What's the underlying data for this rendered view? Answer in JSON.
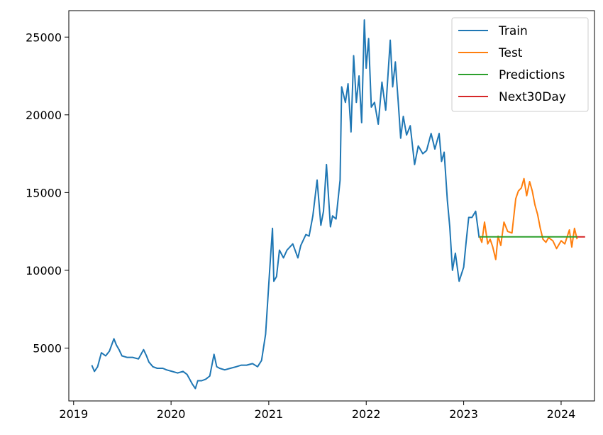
{
  "chart_data": {
    "type": "line",
    "title": "",
    "xlabel": "",
    "ylabel": "",
    "xlim": [
      "2018-12-14",
      "2024-05-05"
    ],
    "ylim": [
      1600,
      26700
    ],
    "x_ticks": [
      "2019",
      "2020",
      "2021",
      "2022",
      "2023",
      "2024"
    ],
    "y_ticks": [
      "5000",
      "10000",
      "15000",
      "20000",
      "25000"
    ],
    "legend_position": "top-right",
    "grid": false,
    "series": [
      {
        "name": "Train",
        "color": "#1f77b4",
        "x": [
          "2019-03-10",
          "2019-03-20",
          "2019-04-01",
          "2019-04-15",
          "2019-05-01",
          "2019-05-15",
          "2019-06-01",
          "2019-06-10",
          "2019-06-20",
          "2019-07-01",
          "2019-07-20",
          "2019-08-10",
          "2019-09-01",
          "2019-09-20",
          "2019-10-01",
          "2019-10-10",
          "2019-10-25",
          "2019-11-10",
          "2019-12-01",
          "2019-12-15",
          "2020-01-05",
          "2020-01-25",
          "2020-02-15",
          "2020-03-01",
          "2020-03-20",
          "2020-04-01",
          "2020-04-10",
          "2020-04-25",
          "2020-05-10",
          "2020-05-25",
          "2020-06-10",
          "2020-06-20",
          "2020-07-01",
          "2020-07-20",
          "2020-08-10",
          "2020-09-01",
          "2020-09-20",
          "2020-10-10",
          "2020-11-01",
          "2020-11-20",
          "2020-12-05",
          "2020-12-20",
          "2021-01-05",
          "2021-01-15",
          "2021-01-20",
          "2021-01-30",
          "2021-02-10",
          "2021-02-25",
          "2021-03-10",
          "2021-04-01",
          "2021-04-20",
          "2021-05-01",
          "2021-05-20",
          "2021-06-01",
          "2021-06-15",
          "2021-07-01",
          "2021-07-15",
          "2021-07-25",
          "2021-08-05",
          "2021-08-20",
          "2021-08-28",
          "2021-09-10",
          "2021-09-25",
          "2021-10-01",
          "2021-10-15",
          "2021-10-25",
          "2021-11-05",
          "2021-11-15",
          "2021-11-25",
          "2021-12-05",
          "2021-12-15",
          "2021-12-25",
          "2022-01-01",
          "2022-01-10",
          "2022-01-20",
          "2022-02-01",
          "2022-02-15",
          "2022-03-01",
          "2022-03-15",
          "2022-04-01",
          "2022-04-10",
          "2022-04-20",
          "2022-05-01",
          "2022-05-10",
          "2022-05-20",
          "2022-06-01",
          "2022-06-15",
          "2022-07-01",
          "2022-07-15",
          "2022-08-01",
          "2022-08-15",
          "2022-09-01",
          "2022-09-15",
          "2022-10-01",
          "2022-10-10",
          "2022-10-20",
          "2022-11-01",
          "2022-11-10",
          "2022-11-20",
          "2022-12-01",
          "2022-12-15",
          "2023-01-01",
          "2023-01-10",
          "2023-01-20",
          "2023-02-01",
          "2023-02-15",
          "2023-02-28"
        ],
        "values": [
          3900,
          3500,
          3800,
          4700,
          4500,
          4800,
          5600,
          5200,
          4900,
          4500,
          4400,
          4400,
          4300,
          4900,
          4500,
          4100,
          3800,
          3700,
          3700,
          3600,
          3500,
          3400,
          3500,
          3300,
          2700,
          2400,
          2900,
          2900,
          3000,
          3200,
          4600,
          3800,
          3700,
          3600,
          3700,
          3800,
          3900,
          3900,
          4000,
          3800,
          4200,
          5900,
          10200,
          12700,
          9300,
          9600,
          11300,
          10800,
          11300,
          11700,
          10800,
          11600,
          12300,
          12200,
          13500,
          15800,
          12900,
          13800,
          16800,
          12800,
          13500,
          13300,
          15800,
          21800,
          20800,
          22000,
          18900,
          23800,
          20800,
          22500,
          19500,
          26100,
          23000,
          24900,
          20500,
          20800,
          19400,
          22100,
          20300,
          24800,
          21800,
          23400,
          20800,
          18500,
          19900,
          18700,
          19300,
          16800,
          18000,
          17500,
          17700,
          18800,
          17800,
          18800,
          17000,
          17600,
          14500,
          12800,
          10000,
          11100,
          9300,
          10200,
          11800,
          13400,
          13400,
          13800,
          12100
        ]
      },
      {
        "name": "Test",
        "color": "#ff7f0e",
        "x": [
          "2023-03-01",
          "2023-03-10",
          "2023-03-20",
          "2023-04-01",
          "2023-04-10",
          "2023-04-20",
          "2023-05-01",
          "2023-05-10",
          "2023-05-20",
          "2023-06-01",
          "2023-06-15",
          "2023-07-01",
          "2023-07-15",
          "2023-07-25",
          "2023-08-05",
          "2023-08-15",
          "2023-08-25",
          "2023-09-05",
          "2023-09-15",
          "2023-09-25",
          "2023-10-05",
          "2023-10-15",
          "2023-10-25",
          "2023-11-05",
          "2023-11-15",
          "2023-12-01",
          "2023-12-15",
          "2024-01-01",
          "2024-01-15",
          "2024-02-01",
          "2024-02-10",
          "2024-02-20",
          "2024-03-01"
        ],
        "values": [
          12200,
          11800,
          13100,
          11700,
          12000,
          11500,
          10700,
          12200,
          11600,
          13100,
          12500,
          12400,
          14600,
          15100,
          15300,
          15900,
          14800,
          15700,
          15100,
          14200,
          13600,
          12700,
          12000,
          11800,
          12100,
          11900,
          11400,
          11900,
          11700,
          12600,
          11500,
          12700,
          12000
        ]
      },
      {
        "name": "Predictions",
        "color": "#2ca02c",
        "x": [
          "2023-03-01",
          "2024-03-01"
        ],
        "values": [
          12150,
          12150
        ]
      },
      {
        "name": "Next30Day",
        "color": "#d62728",
        "x": [
          "2024-03-01",
          "2024-03-31"
        ],
        "values": [
          12150,
          12150
        ]
      }
    ]
  }
}
